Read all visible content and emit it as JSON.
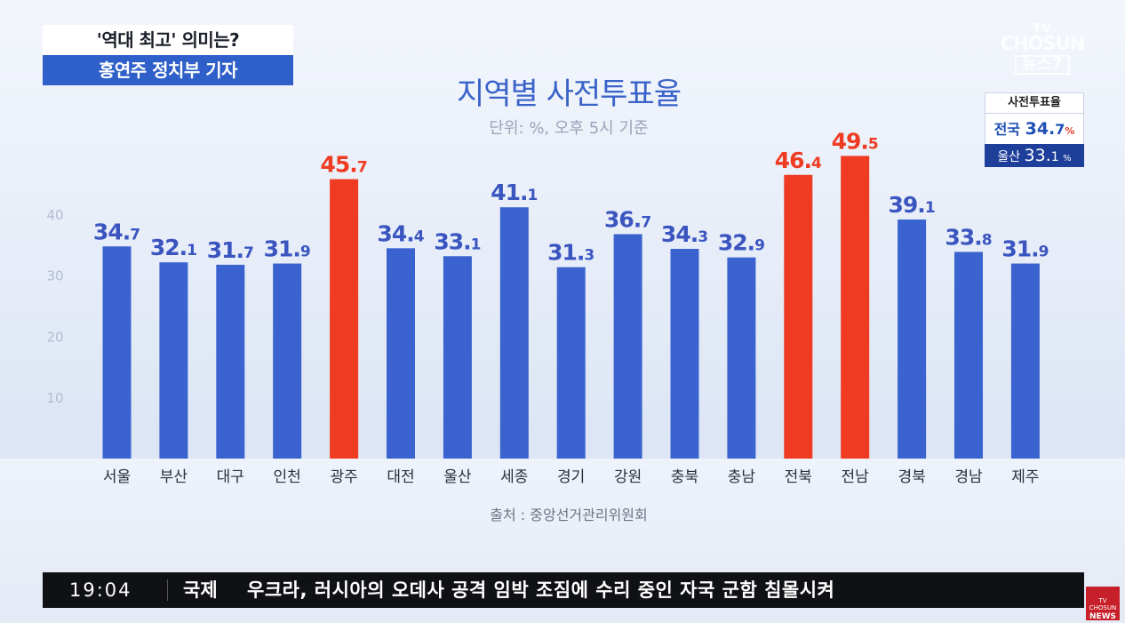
{
  "caption": {
    "topic": "'역대 최고' 의미는?",
    "reporter": "홍연주 정치부 기자"
  },
  "logo": {
    "line1": "TV",
    "line2": "CHOSUN",
    "line3": "뉴스7"
  },
  "side_panel": {
    "title": "사전투표율",
    "national_label": "전국",
    "national_int": "34.",
    "national_dec": "7",
    "national_unit": "%",
    "region_label": "울산",
    "region_int": "33.",
    "region_dec": "1",
    "region_unit": "%"
  },
  "chart_data": {
    "type": "bar",
    "title": "지역별 사전투표율",
    "subtitle": "단위: %, 오후 5시 기준",
    "source": "출처 : 중앙선거관리위원회",
    "categories": [
      "서울",
      "부산",
      "대구",
      "인천",
      "광주",
      "대전",
      "울산",
      "세종",
      "경기",
      "강원",
      "충북",
      "충남",
      "전북",
      "전남",
      "경북",
      "경남",
      "제주"
    ],
    "values": [
      34.7,
      32.1,
      31.7,
      31.9,
      45.7,
      34.4,
      33.1,
      41.1,
      31.3,
      36.7,
      34.3,
      32.9,
      46.4,
      49.5,
      39.1,
      33.8,
      31.9
    ],
    "highlight": [
      false,
      false,
      false,
      false,
      true,
      false,
      false,
      false,
      false,
      false,
      false,
      false,
      true,
      true,
      false,
      false,
      false
    ],
    "yticks": [
      10,
      20,
      30,
      40
    ],
    "ylim": [
      0,
      50
    ],
    "colors": {
      "bar": "#3a63d0",
      "highlight": "#ee3b22",
      "label": "#3a55c0",
      "highlight_label": "#ee3b22",
      "axis": "#b3bdd2"
    }
  },
  "ticker": {
    "time": "19:04",
    "category": "국제",
    "headline": "우크라, 러시아의 오데사 공격 임박 조짐에 수리 중인 자국 군함 침몰시켜"
  },
  "news_logo": {
    "line1": "TV CHOSUN",
    "line2": "NEWS"
  }
}
